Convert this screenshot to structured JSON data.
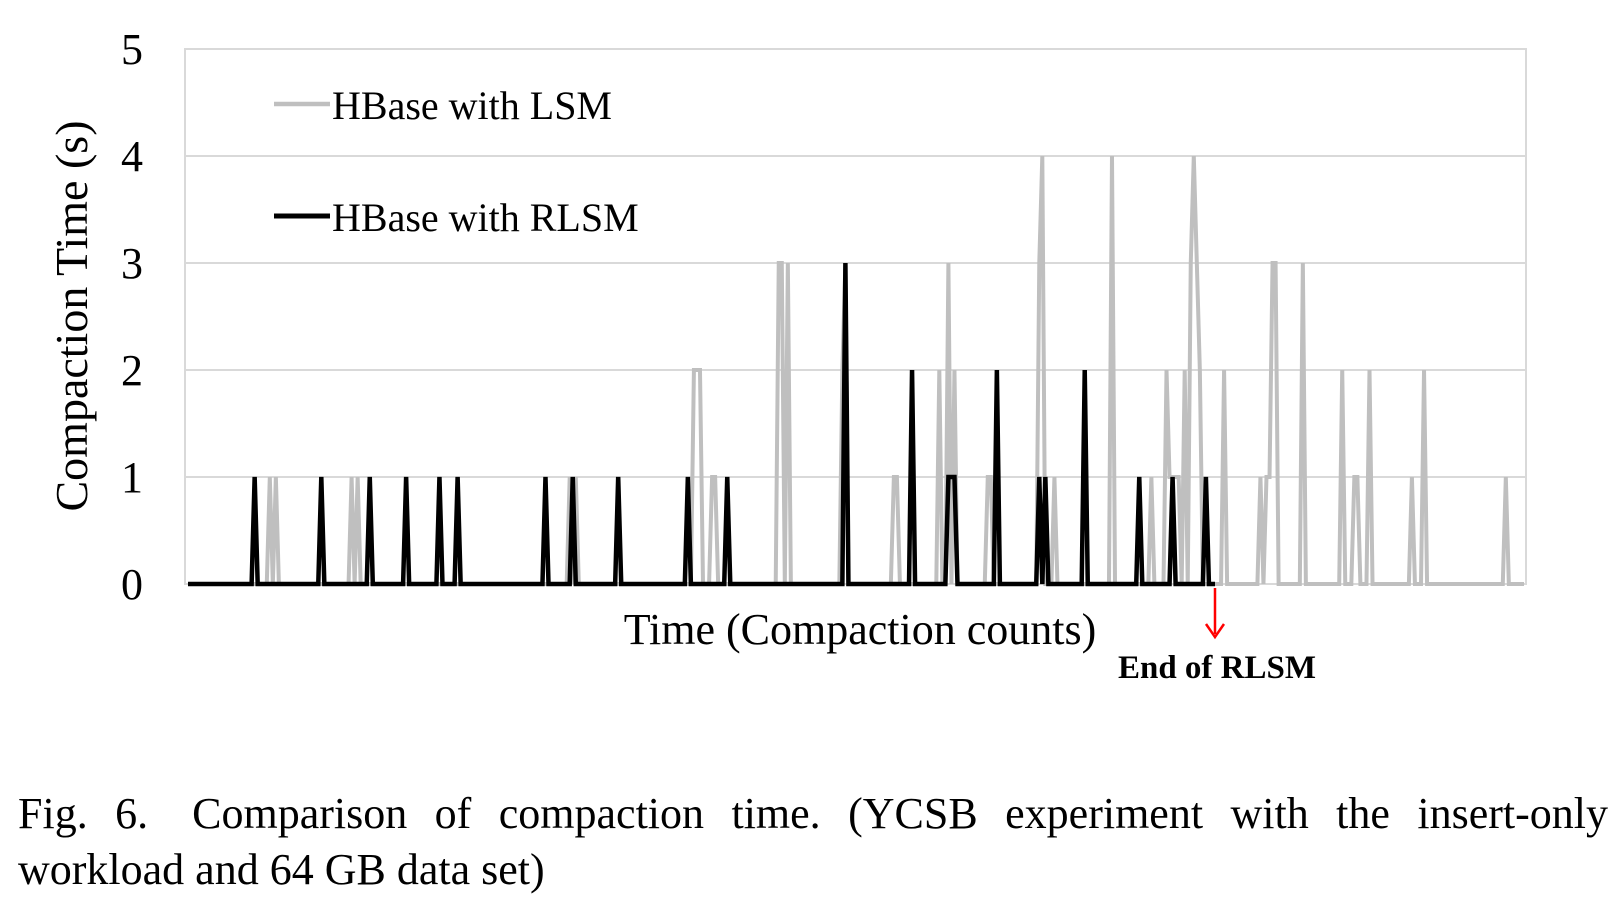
{
  "chart_data": {
    "type": "line",
    "xlabel": "Time (Compaction counts)",
    "ylabel": "Compaction Time (s)",
    "ylim": [
      0,
      5
    ],
    "yticks": [
      0,
      1,
      2,
      3,
      4,
      5
    ],
    "grid": true,
    "legend_position": "top-left",
    "annotation": "End of RLSM",
    "series": [
      {
        "name": "HBase with LSM",
        "color": "#bfbfbf",
        "values": [
          0,
          0,
          0,
          0,
          0,
          0,
          0,
          0,
          0,
          0,
          0,
          0,
          0,
          0,
          0,
          0,
          0,
          0,
          0,
          0,
          0,
          0,
          0,
          0,
          0,
          0,
          0,
          1,
          0,
          1,
          0,
          0,
          0,
          0,
          0,
          0,
          0,
          0,
          0,
          0,
          0,
          0,
          0,
          0,
          0,
          0,
          0,
          0,
          0,
          0,
          0,
          0,
          0,
          0,
          1,
          0,
          1,
          0,
          0,
          0,
          0,
          0,
          0,
          0,
          0,
          0,
          0,
          0,
          0,
          0,
          0,
          0,
          0,
          0,
          0,
          0,
          0,
          0,
          0,
          0,
          0,
          0,
          0,
          0,
          0,
          0,
          0,
          0,
          0,
          0,
          0,
          0,
          0,
          0,
          0,
          0,
          0,
          0,
          0,
          0,
          0,
          0,
          0,
          0,
          0,
          0,
          0,
          0,
          0,
          0,
          0,
          0,
          0,
          0,
          0,
          0,
          0,
          0,
          0,
          0,
          0,
          0,
          0,
          0,
          0,
          0,
          1,
          0,
          1,
          0,
          0,
          0,
          0,
          0,
          0,
          0,
          0,
          0,
          0,
          0,
          0,
          0,
          0,
          0,
          0,
          0,
          0,
          0,
          0,
          0,
          0,
          0,
          0,
          0,
          0,
          0,
          0,
          0,
          0,
          0,
          0,
          0,
          0,
          0,
          0,
          0,
          0,
          2,
          2,
          2,
          0,
          0,
          0,
          1,
          1,
          0,
          0,
          0,
          0,
          0,
          0,
          0,
          0,
          0,
          0,
          0,
          0,
          0,
          0,
          0,
          0,
          0,
          0,
          0,
          0,
          3,
          3,
          0,
          3,
          0,
          0,
          0,
          0,
          0,
          0,
          0,
          0,
          0,
          0,
          0,
          0,
          0,
          0,
          0,
          0,
          0,
          2,
          3,
          0,
          0,
          0,
          0,
          0,
          0,
          0,
          0,
          0,
          0,
          0,
          0,
          0,
          0,
          0,
          1,
          1,
          0,
          0,
          0,
          0,
          0,
          0,
          0,
          0,
          0,
          0,
          0,
          0,
          0,
          2,
          0,
          0,
          3,
          0,
          2,
          0,
          0,
          0,
          0,
          0,
          0,
          0,
          0,
          0,
          0,
          1,
          1,
          0,
          0,
          0,
          0,
          0,
          0,
          0,
          0,
          0,
          0,
          0,
          0,
          0,
          0,
          0,
          3,
          4,
          0,
          0,
          0,
          1,
          0,
          0,
          0,
          0,
          0,
          0,
          0,
          0,
          0,
          0,
          0,
          0,
          0,
          0,
          0,
          0,
          0,
          0,
          4,
          0,
          0,
          0,
          0,
          0,
          0,
          0,
          0,
          0,
          0,
          0,
          0,
          1,
          0,
          0,
          0,
          0,
          2,
          1,
          1,
          1,
          1,
          0,
          2,
          0,
          3,
          4,
          3,
          2,
          0,
          0,
          0,
          0,
          0,
          0,
          0,
          2,
          0,
          0,
          0,
          0,
          0,
          0,
          0,
          0,
          0,
          0,
          0,
          1,
          0,
          1,
          1,
          3,
          3,
          0,
          0,
          0,
          0,
          0,
          0,
          0,
          0,
          3,
          0,
          0,
          0,
          0,
          0,
          0,
          0,
          0,
          0,
          0,
          0,
          0,
          2,
          0,
          0,
          0,
          1,
          1,
          0,
          0,
          0,
          2,
          0,
          0,
          0,
          0,
          0,
          0,
          0,
          0,
          0,
          0,
          0,
          0,
          0,
          1,
          0,
          0,
          0,
          2,
          0,
          0,
          0,
          0,
          0,
          0,
          0,
          0,
          0,
          0,
          0,
          0,
          0,
          0,
          0,
          0,
          0,
          0,
          0,
          0,
          0,
          0,
          0,
          0,
          0,
          0,
          1,
          0,
          0,
          0,
          0,
          0,
          0
        ]
      },
      {
        "name": "HBase with RLSM",
        "color": "#000000",
        "values": [
          0,
          0,
          0,
          0,
          0,
          0,
          0,
          0,
          0,
          0,
          0,
          0,
          0,
          0,
          0,
          0,
          0,
          0,
          0,
          0,
          0,
          0,
          1,
          0,
          0,
          0,
          0,
          0,
          0,
          0,
          0,
          0,
          0,
          0,
          0,
          0,
          0,
          0,
          0,
          0,
          0,
          0,
          0,
          0,
          1,
          0,
          0,
          0,
          0,
          0,
          0,
          0,
          0,
          0,
          0,
          0,
          0,
          0,
          0,
          0,
          1,
          0,
          0,
          0,
          0,
          0,
          0,
          0,
          0,
          0,
          0,
          0,
          1,
          0,
          0,
          0,
          0,
          0,
          0,
          0,
          0,
          0,
          0,
          1,
          0,
          0,
          0,
          0,
          0,
          1,
          0,
          0,
          0,
          0,
          0,
          0,
          0,
          0,
          0,
          0,
          0,
          0,
          0,
          0,
          0,
          0,
          0,
          0,
          0,
          0,
          0,
          0,
          0,
          0,
          0,
          0,
          0,
          0,
          1,
          0,
          0,
          0,
          0,
          0,
          0,
          0,
          0,
          1,
          0,
          0,
          0,
          0,
          0,
          0,
          0,
          0,
          0,
          0,
          0,
          0,
          0,
          0,
          1,
          0,
          0,
          0,
          0,
          0,
          0,
          0,
          0,
          0,
          0,
          0,
          0,
          0,
          0,
          0,
          0,
          0,
          0,
          0,
          0,
          0,
          0,
          1,
          0,
          0,
          0,
          0,
          0,
          0,
          0,
          0,
          0,
          0,
          0,
          0,
          1,
          0,
          0,
          0,
          0,
          0,
          0,
          0,
          0,
          0,
          0,
          0,
          0,
          0,
          0,
          0,
          0,
          0,
          0,
          0,
          0,
          0,
          0,
          0,
          0,
          0,
          0,
          0,
          0,
          0,
          0,
          0,
          0,
          0,
          0,
          0,
          0,
          0,
          0,
          3,
          0,
          0,
          0,
          0,
          0,
          0,
          0,
          0,
          0,
          0,
          0,
          0,
          0,
          0,
          0,
          0,
          0,
          0,
          0,
          0,
          0,
          2,
          0,
          0,
          0,
          0,
          0,
          0,
          0,
          0,
          0,
          0,
          0,
          1,
          1,
          1,
          0,
          0,
          0,
          0,
          0,
          0,
          0,
          0,
          0,
          0,
          0,
          0,
          0,
          2,
          0,
          0,
          0,
          0,
          0,
          0,
          0,
          0,
          0,
          0,
          0,
          0,
          0,
          1,
          0,
          1,
          0,
          0,
          0,
          0,
          0,
          0,
          0,
          0,
          0,
          0,
          0,
          0,
          2,
          0,
          0,
          0,
          0,
          0,
          0,
          0,
          0,
          0,
          0,
          0,
          0,
          0,
          0,
          0,
          0,
          0,
          1,
          0,
          0,
          0,
          0,
          0,
          0,
          0,
          0,
          0,
          0,
          1,
          0,
          0,
          0,
          0,
          0,
          0,
          0,
          0,
          0,
          0,
          1,
          0,
          0,
          0,
          0,
          0,
          0,
          0,
          0,
          0,
          0,
          0,
          0,
          0,
          0,
          0,
          0,
          0,
          0,
          0,
          0,
          0,
          0,
          0,
          0,
          0,
          0,
          0,
          0,
          0,
          0,
          0,
          0,
          0,
          0,
          0,
          0,
          0,
          0,
          0,
          0,
          0,
          0,
          0,
          0,
          0,
          0,
          0,
          0,
          0,
          0,
          0,
          0,
          0,
          0,
          0,
          0,
          0,
          0,
          0,
          0,
          0,
          0,
          0,
          0,
          0,
          0,
          0,
          0,
          0,
          0,
          0,
          0,
          0,
          0,
          0,
          0,
          0,
          0,
          0,
          0,
          0,
          0,
          0,
          0,
          0,
          0,
          0,
          0,
          0,
          0,
          0,
          0,
          0,
          0,
          0,
          0,
          0,
          0,
          0,
          0,
          0,
          0,
          0,
          0,
          0,
          0,
          0,
          0,
          0,
          0,
          0,
          0,
          0,
          0,
          0,
          0,
          0,
          0,
          0,
          0,
          0,
          0,
          0,
          0,
          0,
          0
        ]
      }
    ]
  },
  "caption": {
    "figure_label": "Fig. 6.",
    "text": "Comparison of compaction time. (YCSB experiment with the insert-only workload and 64 GB data set)"
  },
  "colors": {
    "grid": "#d9d9d9",
    "axis_frame": "#d9d9d9",
    "annotation_arrow": "#ff0000"
  }
}
